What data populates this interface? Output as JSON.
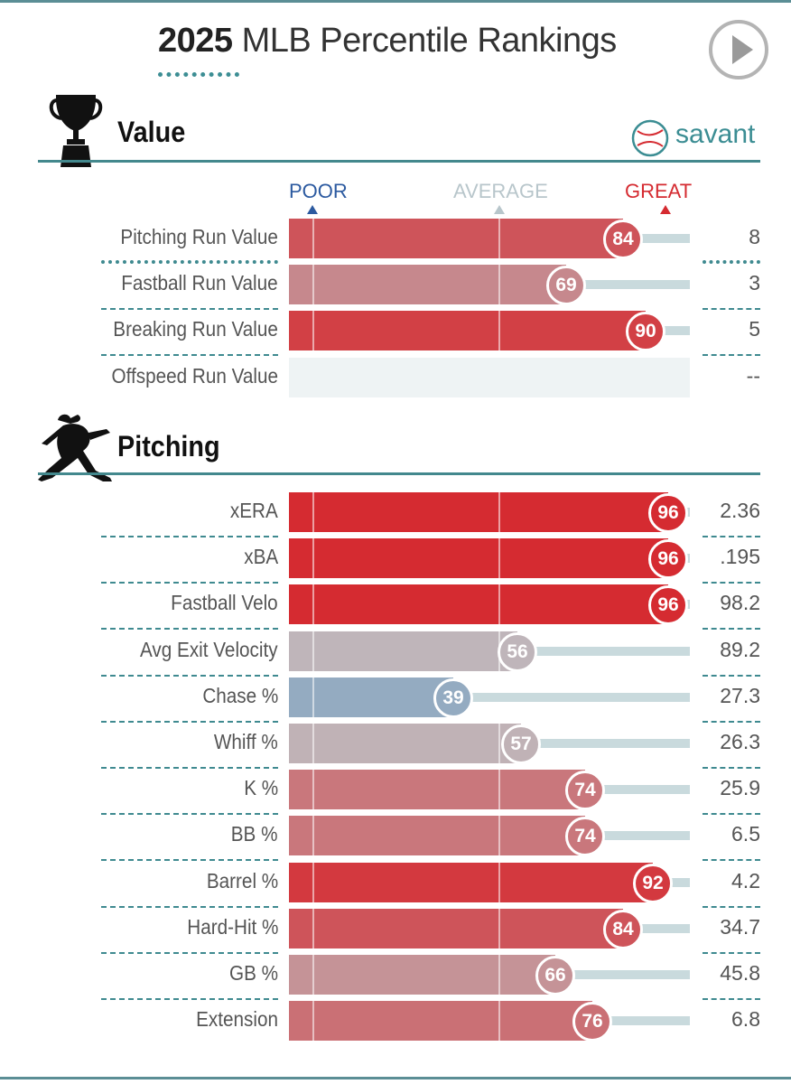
{
  "header": {
    "title_year": "2025",
    "title_rest": "MLB Percentile Rankings",
    "brand": "savant"
  },
  "scale": {
    "poor": "POOR",
    "average": "AVERAGE",
    "great": "GREAT"
  },
  "colors": {
    "poor": "#2c5aa0",
    "average": "#b8c6cb",
    "great": "#d52b31",
    "accent": "#3d8e94"
  },
  "chart_data": {
    "type": "bar",
    "orientation": "horizontal",
    "title": "2025 MLB Percentile Rankings",
    "xlim": [
      0,
      100
    ],
    "sections": [
      {
        "title": "Value",
        "icon": "trophy-icon",
        "rows": [
          {
            "label": "Pitching Run Value",
            "percentile": 84,
            "value": "8"
          },
          {
            "label": "Fastball Run Value",
            "percentile": 69,
            "value": "3"
          },
          {
            "label": "Breaking Run Value",
            "percentile": 90,
            "value": "5"
          },
          {
            "label": "Offspeed Run Value",
            "percentile": null,
            "value": "--"
          }
        ]
      },
      {
        "title": "Pitching",
        "icon": "pitcher-icon",
        "rows": [
          {
            "label": "xERA",
            "percentile": 96,
            "value": "2.36"
          },
          {
            "label": "xBA",
            "percentile": 96,
            "value": ".195"
          },
          {
            "label": "Fastball Velo",
            "percentile": 96,
            "value": "98.2"
          },
          {
            "label": "Avg Exit Velocity",
            "percentile": 56,
            "value": "89.2"
          },
          {
            "label": "Chase %",
            "percentile": 39,
            "value": "27.3"
          },
          {
            "label": "Whiff %",
            "percentile": 57,
            "value": "26.3"
          },
          {
            "label": "K %",
            "percentile": 74,
            "value": "25.9"
          },
          {
            "label": "BB %",
            "percentile": 74,
            "value": "6.5"
          },
          {
            "label": "Barrel %",
            "percentile": 92,
            "value": "4.2"
          },
          {
            "label": "Hard-Hit %",
            "percentile": 84,
            "value": "34.7"
          },
          {
            "label": "GB %",
            "percentile": 66,
            "value": "45.8"
          },
          {
            "label": "Extension",
            "percentile": 76,
            "value": "6.8"
          }
        ]
      }
    ]
  }
}
